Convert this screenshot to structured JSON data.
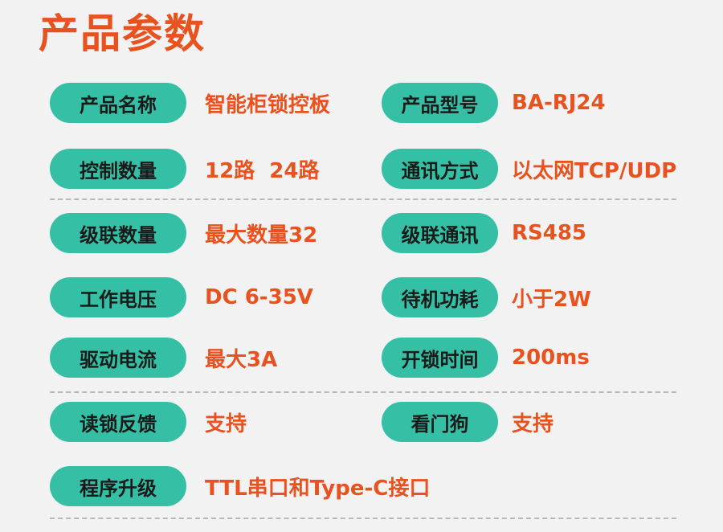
{
  "title": "产品参数",
  "rows": [
    [
      {
        "label": "产品名称",
        "value": "智能柜锁控板"
      },
      {
        "label": "产品型号",
        "value": "BA-RJ24"
      }
    ],
    [
      {
        "label": "控制数量",
        "value": "12路  24路"
      },
      {
        "label": "通讯方式",
        "value": "以太网TCP/UDP"
      }
    ],
    [
      {
        "label": "级联数量",
        "value": "最大数量32"
      },
      {
        "label": "级联通讯",
        "value": "RS485"
      }
    ],
    [
      {
        "label": "工作电压",
        "value": "DC 6-35V"
      },
      {
        "label": "待机功耗",
        "value": "小于2W"
      }
    ],
    [
      {
        "label": "驱动电流",
        "value": "最大3A"
      },
      {
        "label": "开锁时间",
        "value": "200ms"
      }
    ],
    [
      {
        "label": "读锁反馈",
        "value": "支持"
      },
      {
        "label": "看门狗",
        "value": "支持"
      }
    ],
    [
      {
        "label": "程序升级",
        "value": "TTL串口和Type-C接口"
      }
    ]
  ]
}
